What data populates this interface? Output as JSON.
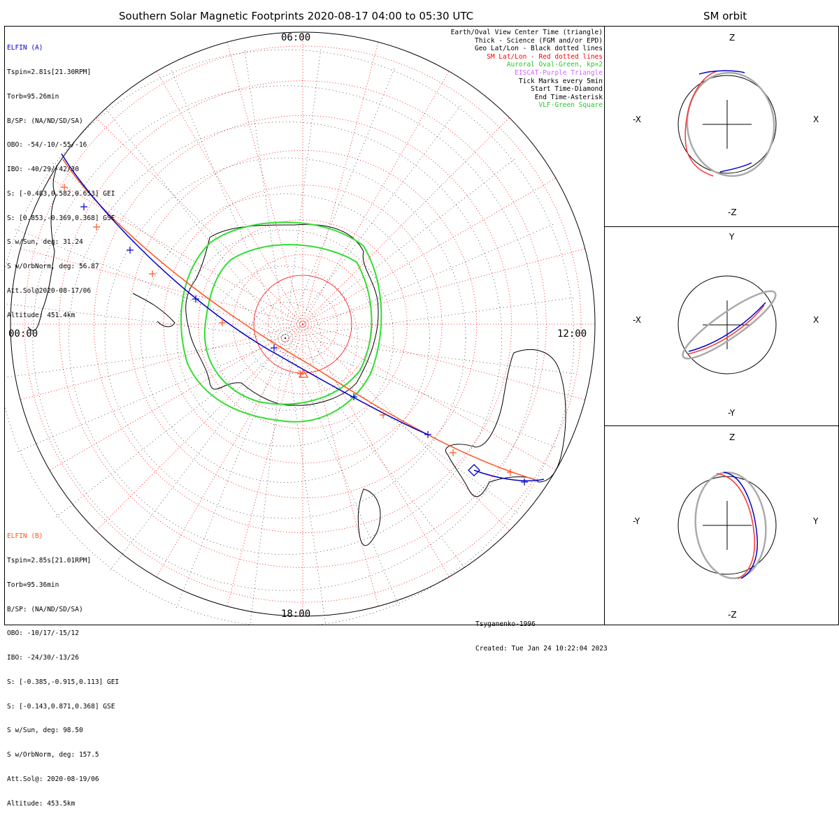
{
  "titles": {
    "main": "Southern Solar Magnetic Footprints 2020-08-17 04:00 to 05:30 UTC",
    "orbit": "SM orbit"
  },
  "elfin_a": {
    "name": "ELFIN (A)",
    "lines": [
      "Tspin=2.81s[21.30RPM]",
      "Torb=95.26min",
      "B/SP: (NA/ND/SD/SA)",
      "OBO: -54/-10/-55/-16",
      "IBO: -40/29/-42/30",
      "S: [-0.483,0.582,0.653] GEI",
      "S: [0.853,-0.369,0.368] GSE",
      "S w/Sun, deg: 31.24",
      "S w/OrbNorm, deg: 56.87",
      "Att.Sol@2020-08-17/06",
      "Altitude: 451.4km"
    ],
    "color": "#0000cc"
  },
  "elfin_b": {
    "name": "ELFIN (B)",
    "lines": [
      "Tspin=2.85s[21.01RPM]",
      "Torb=95.36min",
      "B/SP: (NA/ND/SD/SA)",
      "OBO: -10/17/-15/12",
      "IBO: -24/30/-13/26",
      "S: [-0.385,-0.915,0.113] GEI",
      "S: [-0.143,0.871,0.368] GSE",
      "S w/Sun, deg: 98.50",
      "S w/OrbNorm, deg: 157.5",
      "Att.Sol@: 2020-08-19/06",
      "Altitude: 453.5km"
    ],
    "color": "#ff5522"
  },
  "legend": [
    {
      "text": "Earth/Oval View Center Time (triangle)",
      "color": "#000000"
    },
    {
      "text": "Thick - Science (FGM and/or EPD)",
      "color": "#000000"
    },
    {
      "text": "Geo Lat/Lon - Black dotted lines",
      "color": "#000000"
    },
    {
      "text": "SM Lat/Lon - Red dotted lines",
      "color": "#ff0000"
    },
    {
      "text": "Auroral Oval-Green, kp=2",
      "color": "#22cc22"
    },
    {
      "text": "EISCAT-Purple Triangle",
      "color": "#cc66ff"
    },
    {
      "text": "Tick Marks every 5min",
      "color": "#000000"
    },
    {
      "text": "Start Time-Diamond",
      "color": "#000000"
    },
    {
      "text": "End Time-Asterisk",
      "color": "#000000"
    },
    {
      "text": "VLF-Green Square",
      "color": "#22cc22"
    }
  ],
  "mlt_labels": {
    "top": "06:00",
    "left": "00:00",
    "right": "12:00",
    "bottom": "18:00"
  },
  "footer": {
    "model": "Tsyganenko-1996",
    "created": "Created: Tue Jan 24 10:22:04 2023"
  },
  "orbit_panels": [
    {
      "name": "xz",
      "top": "Z",
      "bottom": "-Z",
      "left": "-X",
      "right": "X"
    },
    {
      "name": "xy",
      "top": "Y",
      "bottom": "-Y",
      "left": "-X",
      "right": "X"
    },
    {
      "name": "yz",
      "top": "Z",
      "bottom": "-Z",
      "left": "-Y",
      "right": "Y"
    }
  ],
  "chart_data": {
    "type": "polar-map",
    "title": "Southern Solar Magnetic Footprints 2020-08-17 04:00 to 05:30 UTC",
    "time_range_utc": [
      "04:00",
      "05:30"
    ],
    "magnetic_local_time_ticks": [
      "00:00",
      "06:00",
      "12:00",
      "18:00"
    ],
    "magnetic_model": "Tsyganenko-1996",
    "series": [
      {
        "name": "ELFIN (A)",
        "color": "#0000cc"
      },
      {
        "name": "ELFIN (B)",
        "color": "#ff5522"
      },
      {
        "name": "Auroral Oval kp=2",
        "color": "#22cc22"
      }
    ]
  }
}
